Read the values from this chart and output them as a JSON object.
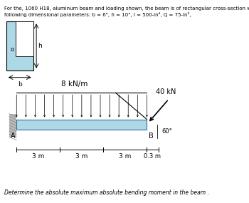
{
  "title_line1": "For the, 1060 H18, aluminum beam and loading shown, the beam is of rectangular cross-section with",
  "title_line2": "following dimensional parameters: b = 6\", h = 10\", I = 500-in⁴, Q = 75-in³,",
  "bottom_text": "Determine the absolute maximum absolute bending moment in the beam .",
  "beam_color": "#add8e6",
  "cross_section_fill": "#add8e6",
  "dist_load_label": "8 kN/m",
  "point_load_label": "40 kN",
  "angle_label": "60°",
  "dim_A": "A",
  "dim_B": "B",
  "span1": "3 m",
  "span2": "3 m",
  "span3": "3 m",
  "overhang": "0.3 m",
  "h_label": "h",
  "b_label": "b",
  "o_label": "o",
  "background_color": "#ffffff"
}
